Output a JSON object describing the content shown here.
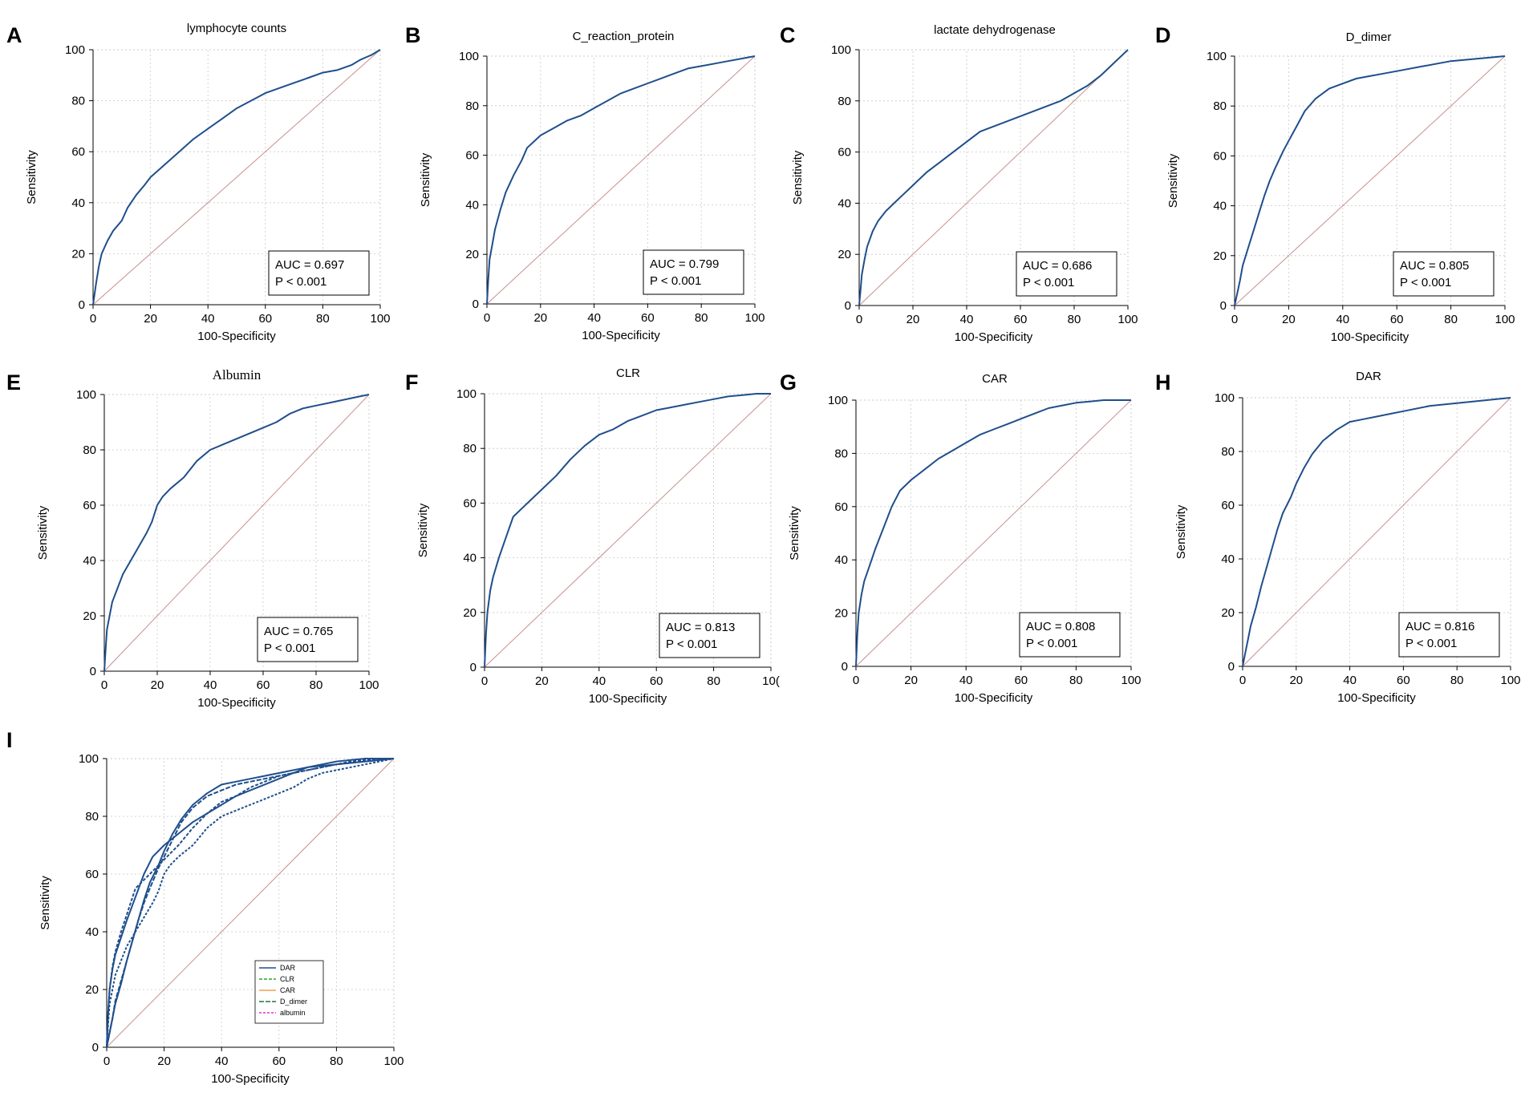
{
  "chart_data": [
    {
      "panel": "A",
      "type": "line",
      "title": "lymphocyte counts",
      "xlabel": "100-Specificity",
      "ylabel": "Sensitivity",
      "xlim": [
        0,
        100
      ],
      "ylim": [
        0,
        100
      ],
      "xticks": [
        "0",
        "20",
        "40",
        "60",
        "80",
        "100"
      ],
      "yticks": [
        "0",
        "20",
        "40",
        "60",
        "80",
        "100"
      ],
      "auc_text": "AUC = 0.697",
      "p_text": "P < 0.001",
      "series": [
        {
          "name": "lymphocyte counts",
          "color": "#1f4e8c",
          "x": [
            0,
            1,
            2,
            3,
            5,
            7,
            10,
            12,
            15,
            18,
            20,
            22,
            25,
            30,
            35,
            40,
            45,
            50,
            55,
            60,
            65,
            70,
            75,
            80,
            85,
            90,
            93,
            95,
            97,
            100
          ],
          "y": [
            0,
            8,
            15,
            20,
            25,
            29,
            33,
            38,
            43,
            47,
            50,
            52,
            55,
            60,
            65,
            69,
            73,
            77,
            80,
            83,
            85,
            87,
            89,
            91,
            92,
            94,
            96,
            97,
            98,
            100
          ]
        }
      ]
    },
    {
      "panel": "B",
      "type": "line",
      "title": "C_reaction_protein",
      "xlabel": "100-Specificity",
      "ylabel": "Sensitivity",
      "xlim": [
        0,
        100
      ],
      "ylim": [
        0,
        100
      ],
      "xticks": [
        "0",
        "20",
        "40",
        "60",
        "80",
        "100"
      ],
      "yticks": [
        "0",
        "20",
        "40",
        "60",
        "80",
        "100"
      ],
      "auc_text": "AUC = 0.799",
      "p_text": "P < 0.001",
      "series": [
        {
          "name": "C_reaction_protein",
          "color": "#1f4e8c",
          "x": [
            0,
            0.5,
            1,
            2,
            3,
            5,
            7,
            10,
            13,
            15,
            18,
            20,
            25,
            30,
            35,
            40,
            45,
            50,
            55,
            60,
            65,
            70,
            75,
            80,
            85,
            90,
            95,
            100
          ],
          "y": [
            0,
            10,
            18,
            24,
            30,
            38,
            45,
            52,
            58,
            63,
            66,
            68,
            71,
            74,
            76,
            79,
            82,
            85,
            87,
            89,
            91,
            93,
            95,
            96,
            97,
            98,
            99,
            100
          ]
        }
      ]
    },
    {
      "panel": "C",
      "type": "line",
      "title": "lactate dehydrogenase",
      "xlabel": "100-Specificity",
      "ylabel": "Sensitivity",
      "xlim": [
        0,
        100
      ],
      "ylim": [
        0,
        100
      ],
      "xticks": [
        "0",
        "20",
        "40",
        "60",
        "80",
        "100"
      ],
      "yticks": [
        "0",
        "20",
        "40",
        "60",
        "80",
        "100"
      ],
      "auc_text": "AUC = 0.686",
      "p_text": "P < 0.001",
      "series": [
        {
          "name": "lactate dehydrogenase",
          "color": "#1f4e8c",
          "x": [
            0,
            0.5,
            1,
            2,
            3,
            5,
            7,
            10,
            13,
            16,
            20,
            25,
            30,
            35,
            40,
            45,
            50,
            55,
            60,
            65,
            70,
            75,
            80,
            85,
            90,
            95,
            100
          ],
          "y": [
            0,
            6,
            12,
            18,
            23,
            29,
            33,
            37,
            40,
            43,
            47,
            52,
            56,
            60,
            64,
            68,
            70,
            72,
            74,
            76,
            78,
            80,
            83,
            86,
            90,
            95,
            100
          ]
        }
      ]
    },
    {
      "panel": "D",
      "type": "line",
      "title": "D_dimer",
      "xlabel": "100-Specificity",
      "ylabel": "Sensitivity",
      "xlim": [
        0,
        100
      ],
      "ylim": [
        0,
        100
      ],
      "xticks": [
        "0",
        "20",
        "40",
        "60",
        "80",
        "100"
      ],
      "yticks": [
        "0",
        "20",
        "40",
        "60",
        "80",
        "100"
      ],
      "auc_text": "AUC = 0.805",
      "p_text": "P < 0.001",
      "series": [
        {
          "name": "D_dimer",
          "color": "#1f4e8c",
          "x": [
            0,
            1,
            2,
            3,
            5,
            7,
            9,
            11,
            13,
            15,
            18,
            20,
            23,
            26,
            30,
            35,
            40,
            45,
            50,
            55,
            60,
            70,
            80,
            90,
            100
          ],
          "y": [
            0,
            5,
            10,
            16,
            23,
            30,
            37,
            44,
            50,
            55,
            62,
            66,
            72,
            78,
            83,
            87,
            89,
            91,
            92,
            93,
            94,
            96,
            98,
            99,
            100
          ]
        }
      ]
    },
    {
      "panel": "E",
      "type": "line",
      "title": "Albumin",
      "xlabel": "100-Specificity",
      "ylabel": "Sensitivity",
      "xlim": [
        0,
        100
      ],
      "ylim": [
        0,
        100
      ],
      "xticks": [
        "0",
        "20",
        "40",
        "60",
        "80",
        "100"
      ],
      "yticks": [
        "0",
        "20",
        "40",
        "60",
        "80",
        "100"
      ],
      "auc_text": "AUC = 0.765",
      "p_text": "P < 0.001",
      "series": [
        {
          "name": "Albumin",
          "color": "#1f4e8c",
          "x": [
            0,
            0.5,
            1,
            2,
            3,
            5,
            7,
            10,
            13,
            16,
            18,
            20,
            22,
            25,
            30,
            35,
            40,
            45,
            50,
            55,
            60,
            65,
            70,
            75,
            80,
            85,
            90,
            95,
            100
          ],
          "y": [
            0,
            8,
            15,
            20,
            25,
            30,
            35,
            40,
            45,
            50,
            54,
            60,
            63,
            66,
            70,
            76,
            80,
            82,
            84,
            86,
            88,
            90,
            93,
            95,
            96,
            97,
            98,
            99,
            100
          ]
        }
      ]
    },
    {
      "panel": "F",
      "type": "line",
      "title": "CLR",
      "xlabel": "100-Specificity",
      "ylabel": "Sensitivity",
      "xlim": [
        0,
        100
      ],
      "ylim": [
        0,
        100
      ],
      "xticks": [
        "0",
        "20",
        "40",
        "60",
        "80",
        "10("
      ],
      "yticks": [
        "0",
        "20",
        "40",
        "60",
        "80",
        "100"
      ],
      "auc_text": "AUC = 0.813",
      "p_text": "P < 0.001",
      "series": [
        {
          "name": "CLR",
          "color": "#1f4e8c",
          "x": [
            0,
            0.5,
            1,
            2,
            3,
            5,
            7,
            10,
            13,
            16,
            20,
            25,
            30,
            35,
            40,
            45,
            50,
            55,
            60,
            65,
            70,
            75,
            80,
            85,
            90,
            95,
            100
          ],
          "y": [
            0,
            12,
            20,
            28,
            33,
            40,
            46,
            55,
            58,
            61,
            65,
            70,
            76,
            81,
            85,
            87,
            90,
            92,
            94,
            95,
            96,
            97,
            98,
            99,
            99.5,
            100,
            100
          ]
        }
      ]
    },
    {
      "panel": "G",
      "type": "line",
      "title": "CAR",
      "xlabel": "100-Specificity",
      "ylabel": "Sensitivity",
      "xlim": [
        0,
        100
      ],
      "ylim": [
        0,
        100
      ],
      "xticks": [
        "0",
        "20",
        "40",
        "60",
        "80",
        "100"
      ],
      "yticks": [
        "0",
        "20",
        "40",
        "60",
        "80",
        "100"
      ],
      "auc_text": "AUC = 0.808",
      "p_text": "P < 0.001",
      "series": [
        {
          "name": "CAR",
          "color": "#1f4e8c",
          "x": [
            0,
            0.5,
            1,
            2,
            3,
            5,
            7,
            10,
            13,
            16,
            20,
            25,
            30,
            35,
            40,
            45,
            50,
            55,
            60,
            65,
            70,
            75,
            80,
            85,
            90,
            95,
            100
          ],
          "y": [
            0,
            12,
            20,
            27,
            32,
            38,
            44,
            52,
            60,
            66,
            70,
            74,
            78,
            81,
            84,
            87,
            89,
            91,
            93,
            95,
            97,
            98,
            99,
            99.5,
            100,
            100,
            100
          ]
        }
      ]
    },
    {
      "panel": "H",
      "type": "line",
      "title": "DAR",
      "xlabel": "100-Specificity",
      "ylabel": "Sensitivity",
      "xlim": [
        0,
        100
      ],
      "ylim": [
        0,
        100
      ],
      "xticks": [
        "0",
        "20",
        "40",
        "60",
        "80",
        "100"
      ],
      "yticks": [
        "0",
        "20",
        "40",
        "60",
        "80",
        "100"
      ],
      "auc_text": "AUC = 0.816",
      "p_text": "P < 0.001",
      "series": [
        {
          "name": "DAR",
          "color": "#1f4e8c",
          "x": [
            0,
            1,
            2,
            3,
            5,
            7,
            9,
            11,
            13,
            15,
            18,
            20,
            23,
            26,
            30,
            35,
            40,
            45,
            50,
            55,
            60,
            70,
            80,
            90,
            100
          ],
          "y": [
            0,
            5,
            10,
            15,
            22,
            30,
            37,
            44,
            51,
            57,
            63,
            68,
            74,
            79,
            84,
            88,
            91,
            92,
            93,
            94,
            95,
            97,
            98,
            99,
            100
          ]
        }
      ]
    },
    {
      "panel": "I",
      "type": "line",
      "title": "",
      "xlabel": "100-Specificity",
      "ylabel": "Sensitivity",
      "xlim": [
        0,
        100
      ],
      "ylim": [
        0,
        100
      ],
      "xticks": [
        "0",
        "20",
        "40",
        "60",
        "80",
        "100"
      ],
      "yticks": [
        "0",
        "20",
        "40",
        "60",
        "80",
        "100"
      ],
      "legend_position": "bottom-right",
      "series": [
        {
          "name": "DAR",
          "color": "#1f4e8c",
          "dash": "",
          "x": [
            0,
            1,
            2,
            3,
            5,
            7,
            9,
            11,
            13,
            15,
            18,
            20,
            23,
            26,
            30,
            35,
            40,
            45,
            50,
            55,
            60,
            70,
            80,
            90,
            100
          ],
          "y": [
            0,
            5,
            10,
            15,
            22,
            30,
            37,
            44,
            51,
            57,
            63,
            68,
            74,
            79,
            84,
            88,
            91,
            92,
            93,
            94,
            95,
            97,
            98,
            99,
            100
          ]
        },
        {
          "name": "CLR",
          "color": "#2ca02c",
          "dash": "4 2",
          "x": [
            0,
            0.5,
            1,
            2,
            3,
            5,
            7,
            10,
            13,
            16,
            20,
            25,
            30,
            35,
            40,
            45,
            50,
            55,
            60,
            65,
            70,
            75,
            80,
            85,
            90,
            95,
            100
          ],
          "y": [
            0,
            12,
            20,
            28,
            33,
            40,
            46,
            55,
            58,
            61,
            65,
            70,
            76,
            81,
            85,
            87,
            90,
            92,
            94,
            95,
            96,
            97,
            98,
            99,
            99.5,
            100,
            100
          ]
        },
        {
          "name": "CAR",
          "color": "#f0a04b",
          "dash": "",
          "x": [
            0,
            0.5,
            1,
            2,
            3,
            5,
            7,
            10,
            13,
            16,
            20,
            25,
            30,
            35,
            40,
            45,
            50,
            55,
            60,
            65,
            70,
            75,
            80,
            85,
            90,
            95,
            100
          ],
          "y": [
            0,
            12,
            20,
            27,
            32,
            38,
            44,
            52,
            60,
            66,
            70,
            74,
            78,
            81,
            84,
            87,
            89,
            91,
            93,
            95,
            97,
            98,
            99,
            99.5,
            100,
            100,
            100
          ]
        },
        {
          "name": "D_dimer",
          "color": "#1a7a3a",
          "dash": "6 2",
          "x": [
            0,
            1,
            2,
            3,
            5,
            7,
            9,
            11,
            13,
            15,
            18,
            20,
            23,
            26,
            30,
            35,
            40,
            45,
            50,
            55,
            60,
            70,
            80,
            90,
            100
          ],
          "y": [
            0,
            5,
            10,
            16,
            23,
            30,
            37,
            44,
            50,
            55,
            62,
            66,
            72,
            78,
            83,
            87,
            89,
            91,
            92,
            93,
            94,
            96,
            98,
            99,
            100
          ]
        },
        {
          "name": "albumin",
          "color": "#e032d6",
          "dash": "3 2",
          "x": [
            0,
            0.5,
            1,
            2,
            3,
            5,
            7,
            10,
            13,
            16,
            18,
            20,
            22,
            25,
            30,
            35,
            40,
            45,
            50,
            55,
            60,
            65,
            70,
            75,
            80,
            85,
            90,
            95,
            100
          ],
          "y": [
            0,
            8,
            15,
            20,
            25,
            30,
            35,
            40,
            45,
            50,
            54,
            60,
            63,
            66,
            70,
            76,
            80,
            82,
            84,
            86,
            88,
            90,
            93,
            95,
            96,
            97,
            98,
            99,
            100
          ]
        }
      ]
    }
  ]
}
